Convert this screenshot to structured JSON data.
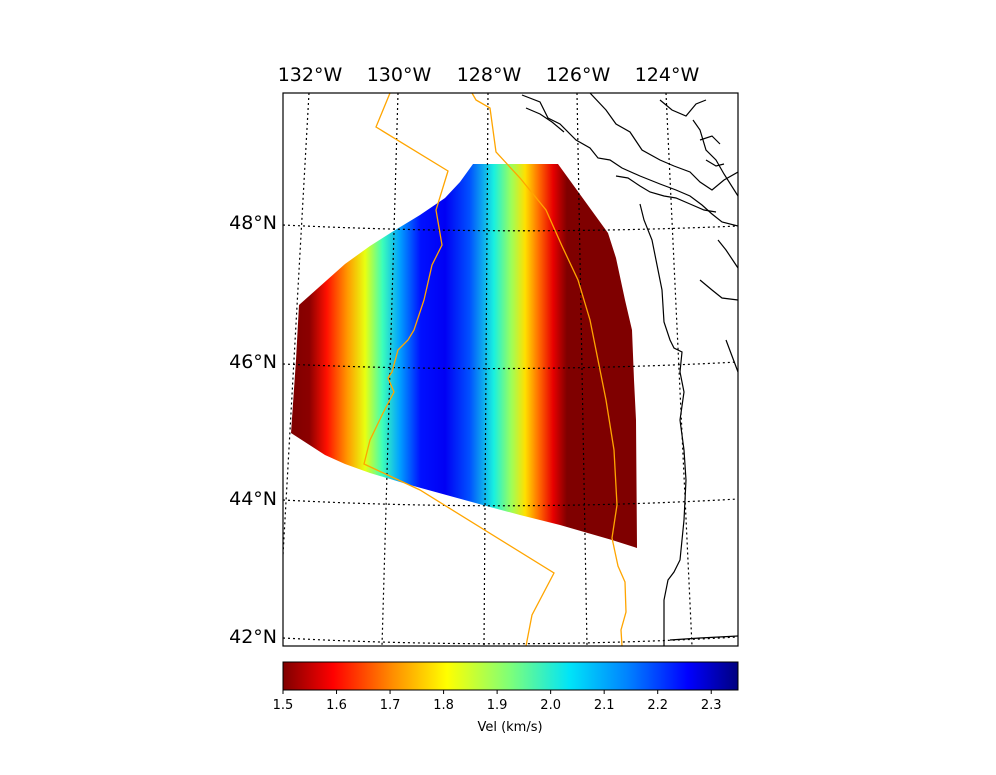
{
  "map": {
    "lon_labels": [
      "132°W",
      "130°W",
      "128°W",
      "126°W",
      "124°W"
    ],
    "lat_labels": [
      "48°N",
      "46°N",
      "44°N",
      "42°N"
    ],
    "lon_range": [
      -133.0,
      -122.5
    ],
    "lat_range": [
      41.9,
      49.9
    ],
    "overlays": [
      "velocity-model-grid",
      "coastline",
      "plate-boundary-lines"
    ],
    "colors": {
      "boundary": "#ffa500",
      "coastline": "#000000",
      "grid": "#000000"
    }
  },
  "colorbar": {
    "title": "Vel (km/s)",
    "colormap": "jet_r",
    "vmin": 1.5,
    "vmax": 2.35,
    "ticks": [
      "1.5",
      "1.6",
      "1.7",
      "1.8",
      "1.9",
      "2.0",
      "2.1",
      "2.2",
      "2.3"
    ],
    "tick_values": [
      1.5,
      1.6,
      1.7,
      1.8,
      1.9,
      2.0,
      2.1,
      2.2,
      2.3
    ]
  }
}
